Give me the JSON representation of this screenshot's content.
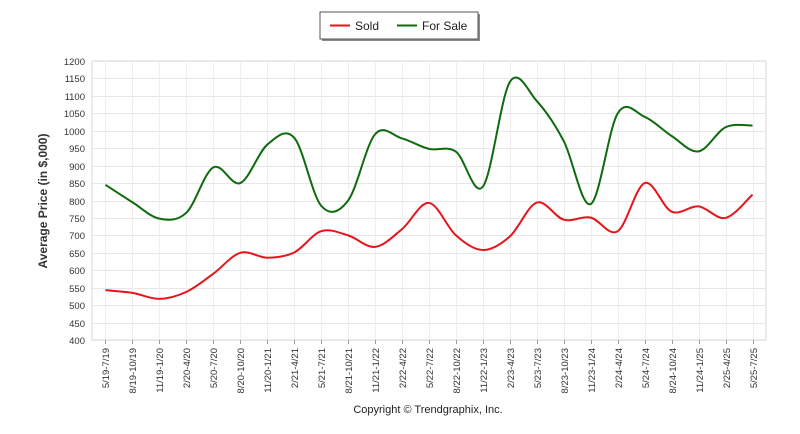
{
  "chart_data": {
    "type": "line",
    "ylabel": "Average Price (in $,000)",
    "ylim": [
      400,
      1200
    ],
    "yticks": [
      400,
      450,
      500,
      550,
      600,
      650,
      700,
      750,
      800,
      850,
      900,
      950,
      1000,
      1050,
      1100,
      1150,
      1200
    ],
    "grid": true,
    "legend_position": "top-center",
    "categories": [
      "5/19-7/19",
      "8/19-10/19",
      "11/19-1/20",
      "2/20-4/20",
      "5/20-7/20",
      "8/20-10/20",
      "11/20-1/21",
      "2/21-4/21",
      "5/21-7/21",
      "8/21-10/21",
      "11/21-1/22",
      "2/22-4/22",
      "5/22-7/22",
      "8/22-10/22",
      "11/22-1/23",
      "2/23-4/23",
      "5/23-7/23",
      "8/23-10/23",
      "11/23-1/24",
      "2/24-4/24",
      "5/24-7/24",
      "8/24-10/24",
      "11/24-1/25",
      "2/25-4/25",
      "5/25-7/25"
    ],
    "series": [
      {
        "name": "Sold",
        "color": "#e8141c",
        "values": [
          543,
          535,
          518,
          538,
          590,
          650,
          636,
          651,
          712,
          700,
          667,
          718,
          793,
          700,
          658,
          697,
          794,
          745,
          751,
          712,
          850,
          768,
          783,
          750,
          817
        ]
      },
      {
        "name": "For Sale",
        "color": "#0e6b0e",
        "values": [
          845,
          795,
          748,
          765,
          895,
          850,
          960,
          980,
          785,
          800,
          990,
          978,
          948,
          940,
          840,
          1140,
          1085,
          970,
          790,
          1050,
          1040,
          985,
          941,
          1010,
          1015
        ]
      }
    ]
  },
  "footer": {
    "copyright": "Copyright © Trendgraphix, Inc."
  }
}
